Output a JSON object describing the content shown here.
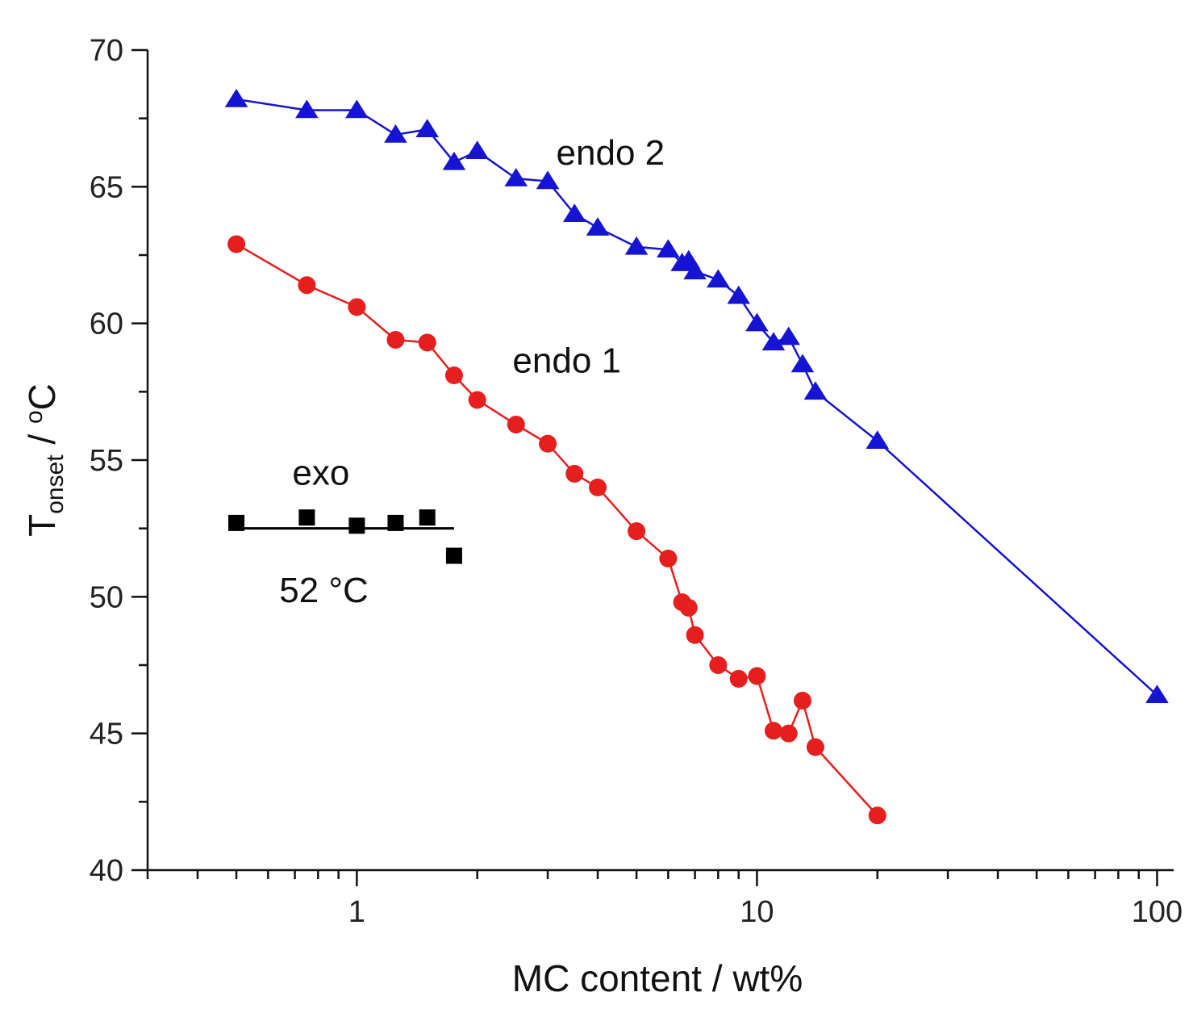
{
  "chart_data": {
    "type": "line",
    "xscale": "log",
    "xlim": [
      0.3,
      110
    ],
    "ylim": [
      40,
      70
    ],
    "yticks": [
      40,
      45,
      50,
      55,
      60,
      65,
      70
    ],
    "ytick_labels": [
      "40",
      "45",
      "50",
      "55",
      "60",
      "65",
      "70"
    ],
    "xticks": [
      1,
      10,
      100
    ],
    "xtick_labels": [
      "1",
      "10",
      "100"
    ],
    "xlabel": "MC content / wt%",
    "ylabel": {
      "main": "T",
      "subscript": "onset",
      "rest": " / ",
      "sup": "o",
      "unit": "C"
    },
    "series": [
      {
        "name": "endo 2",
        "color": "#1414d2",
        "marker": "triangle",
        "x": [
          0.5,
          0.75,
          1.0,
          1.25,
          1.5,
          1.75,
          2.0,
          2.5,
          3.0,
          3.5,
          4.0,
          5.0,
          6.0,
          6.5,
          6.75,
          7.0,
          8.0,
          9.0,
          10.0,
          11.0,
          12.0,
          13.0,
          14.0,
          20.0,
          100.0
        ],
        "y": [
          68.2,
          67.8,
          67.8,
          66.9,
          67.1,
          65.9,
          66.3,
          65.3,
          65.2,
          64.0,
          63.5,
          62.8,
          62.7,
          62.2,
          62.3,
          61.9,
          61.6,
          61.0,
          60.0,
          59.3,
          59.5,
          58.5,
          57.5,
          55.7,
          46.4
        ]
      },
      {
        "name": "endo 1",
        "color": "#e61e1e",
        "marker": "circle",
        "x": [
          0.5,
          0.75,
          1.0,
          1.25,
          1.5,
          1.75,
          2.0,
          2.5,
          3.0,
          3.5,
          4.0,
          5.0,
          6.0,
          6.5,
          6.75,
          7.0,
          8.0,
          9.0,
          10.0,
          11.0,
          12.0,
          13.0,
          14.0,
          20.0
        ],
        "y": [
          62.9,
          61.4,
          60.6,
          59.4,
          59.3,
          58.1,
          57.2,
          56.3,
          55.6,
          54.5,
          54.0,
          52.4,
          51.4,
          49.8,
          49.6,
          48.6,
          47.5,
          47.0,
          47.1,
          45.1,
          45.0,
          46.2,
          44.5,
          42.0
        ]
      },
      {
        "name": "exo",
        "color": "#000000",
        "marker": "square",
        "x": [
          0.5,
          0.75,
          1.0,
          1.25,
          1.5,
          1.75
        ],
        "y": [
          52.7,
          52.9,
          52.6,
          52.7,
          52.9,
          51.5
        ],
        "fit_line": {
          "x": [
            0.5,
            1.75
          ],
          "y": [
            52.5,
            52.5
          ]
        }
      }
    ],
    "annotations": [
      {
        "text": "endo 2",
        "x": 3.15,
        "y": 65.8
      },
      {
        "text": "endo 1",
        "x": 2.45,
        "y": 58.2
      },
      {
        "text": "exo",
        "x": 0.69,
        "y": 54.1
      },
      {
        "text": "52 °C",
        "x": 0.64,
        "y": 49.8
      }
    ]
  }
}
